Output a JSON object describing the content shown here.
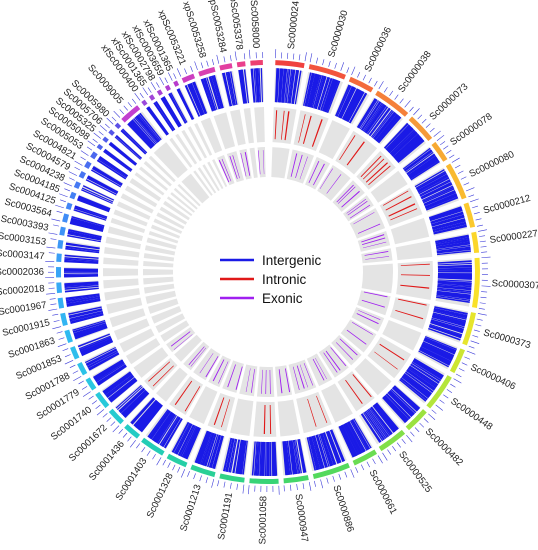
{
  "chart_data": {
    "type": "circos",
    "title": "",
    "legend": {
      "placement": "center",
      "items": [
        {
          "label": "Intergenic",
          "color": "#1a1ae6"
        },
        {
          "label": "Intronic",
          "color": "#e01818"
        },
        {
          "label": "Exonic",
          "color": "#a020f0"
        }
      ]
    },
    "track_colors": {
      "intergenic": "#1a1ae6",
      "intronic": "#e01818",
      "exonic": "#a020f0",
      "track_background": "#e4e4e4",
      "ticks": "#3a3ad8"
    },
    "contigs": [
      {
        "name": "Sc0000024",
        "color": "#f0413f",
        "intergenic": 14,
        "intronic": 3,
        "exonic": 0
      },
      {
        "name": "Sc0000030",
        "color": "#f2543e",
        "intergenic": 18,
        "intronic": 3,
        "exonic": 3
      },
      {
        "name": "Sc0000036",
        "color": "#f36a3c",
        "intergenic": 12,
        "intronic": 0,
        "exonic": 2
      },
      {
        "name": "Sc0000038",
        "color": "#f5803a",
        "intergenic": 18,
        "intronic": 2,
        "exonic": 2
      },
      {
        "name": "Sc0000073",
        "color": "#f59a38",
        "intergenic": 14,
        "intronic": 4,
        "exonic": 3
      },
      {
        "name": "Sc0000078",
        "color": "#f7a933",
        "intergenic": 10,
        "intronic": 0,
        "exonic": 3
      },
      {
        "name": "Sc0000080",
        "color": "#f9ba30",
        "intergenic": 18,
        "intronic": 4,
        "exonic": 2
      },
      {
        "name": "Sc0000212",
        "color": "#fbc92d",
        "intergenic": 12,
        "intronic": 0,
        "exonic": 3
      },
      {
        "name": "Sc0000227",
        "color": "#fbd62b",
        "intergenic": 10,
        "intronic": 0,
        "exonic": 2
      },
      {
        "name": "Sc0000307",
        "color": "#f9e12a",
        "intergenic": 24,
        "intronic": 3,
        "exonic": 0
      },
      {
        "name": "Sc0000373",
        "color": "#e6e52c",
        "intergenic": 16,
        "intronic": 2,
        "exonic": 2
      },
      {
        "name": "Sc0000406",
        "color": "#cde632",
        "intergenic": 12,
        "intronic": 0,
        "exonic": 2
      },
      {
        "name": "Sc0000448",
        "color": "#b4e53a",
        "intergenic": 18,
        "intronic": 2,
        "exonic": 2
      },
      {
        "name": "Sc0000482",
        "color": "#9be240",
        "intergenic": 12,
        "intronic": 0,
        "exonic": 2
      },
      {
        "name": "Sc0000525",
        "color": "#82df48",
        "intergenic": 14,
        "intronic": 2,
        "exonic": 3
      },
      {
        "name": "Sc0000661",
        "color": "#6adc52",
        "intergenic": 12,
        "intronic": 0,
        "exonic": 2
      },
      {
        "name": "Sc0000886",
        "color": "#54d95c",
        "intergenic": 18,
        "intronic": 2,
        "exonic": 4
      },
      {
        "name": "Sc0000947",
        "color": "#44d668",
        "intergenic": 12,
        "intronic": 0,
        "exonic": 2
      },
      {
        "name": "Sc0001058",
        "color": "#38d476",
        "intergenic": 14,
        "intronic": 2,
        "exonic": 3
      },
      {
        "name": "Sc0001191",
        "color": "#30d286",
        "intergenic": 12,
        "intronic": 0,
        "exonic": 2
      },
      {
        "name": "Sc0001213",
        "color": "#2ad096",
        "intergenic": 12,
        "intronic": 2,
        "exonic": 2
      },
      {
        "name": "Sc0001328",
        "color": "#26cfa6",
        "intergenic": 10,
        "intronic": 0,
        "exonic": 2
      },
      {
        "name": "Sc0001403",
        "color": "#24cdb6",
        "intergenic": 12,
        "intronic": 2,
        "exonic": 2
      },
      {
        "name": "Sc0001436",
        "color": "#24ccc4",
        "intergenic": 8,
        "intronic": 0,
        "exonic": 2
      },
      {
        "name": "Sc0001672",
        "color": "#26cbd0",
        "intergenic": 8,
        "intronic": 2,
        "exonic": 0
      },
      {
        "name": "Sc0001740",
        "color": "#28c9da",
        "intergenic": 8,
        "intronic": 0,
        "exonic": 2
      },
      {
        "name": "Sc0001779",
        "color": "#2ac6e2",
        "intergenic": 6,
        "intronic": 0,
        "exonic": 0
      },
      {
        "name": "Sc0001788",
        "color": "#2cc2e8",
        "intergenic": 6,
        "intronic": 0,
        "exonic": 0
      },
      {
        "name": "Sc0001853",
        "color": "#2ebeec",
        "intergenic": 6,
        "intronic": 0,
        "exonic": 0
      },
      {
        "name": "Sc0001863",
        "color": "#30baf0",
        "intergenic": 6,
        "intronic": 0,
        "exonic": 0
      },
      {
        "name": "Sc0001915",
        "color": "#32b5f2",
        "intergenic": 6,
        "intronic": 0,
        "exonic": 0
      },
      {
        "name": "Sc0001967",
        "color": "#34b0f4",
        "intergenic": 5,
        "intronic": 0,
        "exonic": 0
      },
      {
        "name": "Sc0002018",
        "color": "#36aaf5",
        "intergenic": 5,
        "intronic": 0,
        "exonic": 0
      },
      {
        "name": "Sc0002036",
        "color": "#38a4f6",
        "intergenic": 5,
        "intronic": 0,
        "exonic": 0
      },
      {
        "name": "Sc0003147",
        "color": "#3a9ef6",
        "intergenic": 4,
        "intronic": 0,
        "exonic": 0
      },
      {
        "name": "Sc0003153",
        "color": "#3c98f6",
        "intergenic": 4,
        "intronic": 0,
        "exonic": 0
      },
      {
        "name": "Sc0003393",
        "color": "#3e92f6",
        "intergenic": 4,
        "intronic": 0,
        "exonic": 0
      },
      {
        "name": "Sc0003564",
        "color": "#408cf6",
        "intergenic": 4,
        "intronic": 0,
        "exonic": 0
      },
      {
        "name": "Sc0004125",
        "color": "#4286f5",
        "intergenic": 3,
        "intronic": 0,
        "exonic": 0
      },
      {
        "name": "Sc0004185",
        "color": "#4480f4",
        "intergenic": 3,
        "intronic": 0,
        "exonic": 0
      },
      {
        "name": "Sc0004238",
        "color": "#467af3",
        "intergenic": 3,
        "intronic": 0,
        "exonic": 0
      },
      {
        "name": "Sc0004579",
        "color": "#4874f2",
        "intergenic": 3,
        "intronic": 0,
        "exonic": 0
      },
      {
        "name": "Sc0004821",
        "color": "#4a6ef0",
        "intergenic": 3,
        "intronic": 0,
        "exonic": 0
      },
      {
        "name": "Sc0005053",
        "color": "#4c68ee",
        "intergenic": 3,
        "intronic": 0,
        "exonic": 0
      },
      {
        "name": "Sc0005098",
        "color": "#4e62ec",
        "intergenic": 2,
        "intronic": 0,
        "exonic": 0
      },
      {
        "name": "Sc0005325",
        "color": "#505cea",
        "intergenic": 2,
        "intronic": 0,
        "exonic": 0
      },
      {
        "name": "Sc0005706",
        "color": "#5456e8",
        "intergenic": 2,
        "intronic": 0,
        "exonic": 0
      },
      {
        "name": "Sc0005980",
        "color": "#5c50e6",
        "intergenic": 2,
        "intronic": 0,
        "exonic": 0
      },
      {
        "name": "Sc0009005",
        "color": "#c23fd0",
        "intergenic": 10,
        "intronic": 0,
        "exonic": 0
      },
      {
        "name": "xfSc0000400",
        "color": "#9a4adc",
        "intergenic": 2,
        "intronic": 0,
        "exonic": 0
      },
      {
        "name": "xfSc0001365",
        "color": "#a046d8",
        "intergenic": 2,
        "intronic": 0,
        "exonic": 0
      },
      {
        "name": "xfSc0002798",
        "color": "#a842d4",
        "intergenic": 2,
        "intronic": 0,
        "exonic": 0
      },
      {
        "name": "xfSc0003659",
        "color": "#b03ed0",
        "intergenic": 2,
        "intronic": 0,
        "exonic": 0
      },
      {
        "name": "xfSc0001365",
        "color": "#b83acc",
        "intergenic": 2,
        "intronic": 0,
        "exonic": 0
      },
      {
        "name": "xpSc0053221",
        "color": "#cc3ec0",
        "intergenic": 6,
        "intronic": 0,
        "exonic": 2
      },
      {
        "name": "xpSc0053258",
        "color": "#d840b0",
        "intergenic": 8,
        "intronic": 0,
        "exonic": 2
      },
      {
        "name": "xpSc0053284",
        "color": "#e23fa0",
        "intergenic": 6,
        "intronic": 0,
        "exonic": 2
      },
      {
        "name": "xpSc0053378",
        "color": "#ea3f8c",
        "intergenic": 4,
        "intronic": 0,
        "exonic": 0
      },
      {
        "name": "xpSc0058000",
        "color": "#ee4070",
        "intergenic": 6,
        "intronic": 0,
        "exonic": 2
      }
    ]
  }
}
